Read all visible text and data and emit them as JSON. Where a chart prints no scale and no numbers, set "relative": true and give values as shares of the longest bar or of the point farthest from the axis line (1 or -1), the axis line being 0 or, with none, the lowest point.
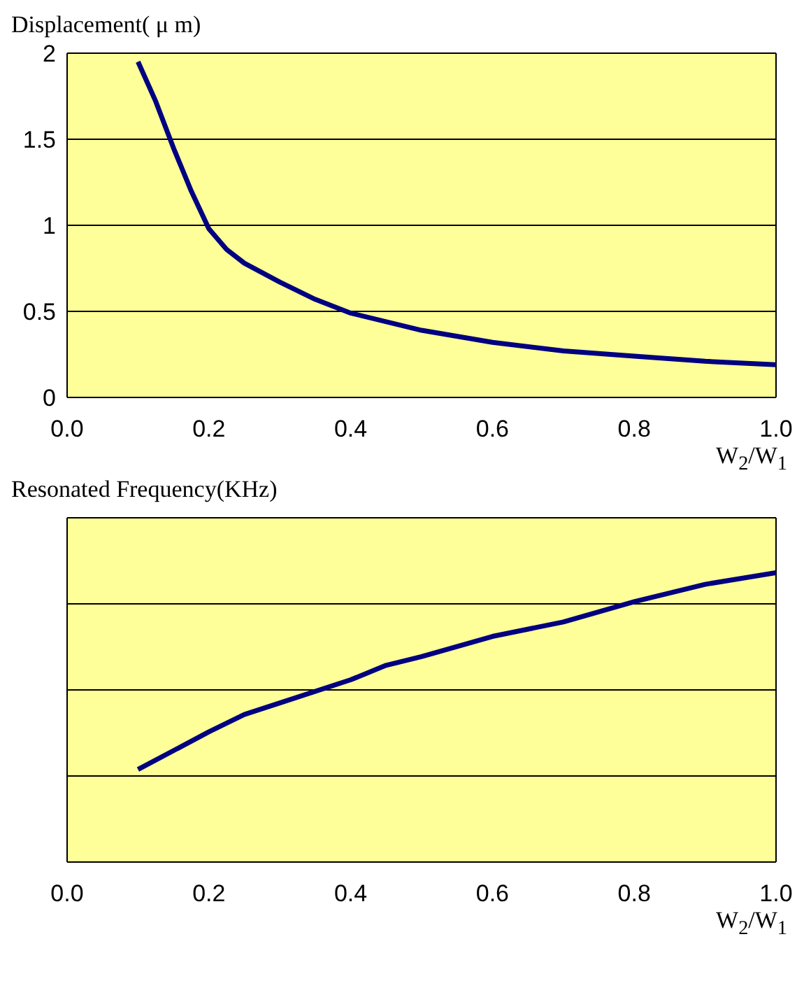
{
  "chart_data": [
    {
      "type": "line",
      "ylabel": "Displacement( μ m)",
      "xlabel": "W$_{2}$/W$_{1}$",
      "x": [
        0.1,
        0.125,
        0.15,
        0.175,
        0.2,
        0.225,
        0.25,
        0.3,
        0.35,
        0.4,
        0.5,
        0.6,
        0.7,
        0.8,
        0.9,
        1.0
      ],
      "series": [
        {
          "color": "#000080",
          "values": [
            1.95,
            1.72,
            1.45,
            1.2,
            0.98,
            0.86,
            0.78,
            0.67,
            0.57,
            0.49,
            0.39,
            0.32,
            0.27,
            0.24,
            0.21,
            0.19
          ]
        }
      ],
      "xlim": [
        0,
        1
      ],
      "xticks": [
        {
          "value": 0,
          "label": "0.0"
        },
        {
          "value": 0.2,
          "label": "0.2"
        },
        {
          "value": 0.4,
          "label": "0.4"
        },
        {
          "value": 0.6,
          "label": "0.6"
        },
        {
          "value": 0.8,
          "label": "0.8"
        },
        {
          "value": 1,
          "label": "1.0"
        }
      ],
      "ylim": [
        0,
        2
      ],
      "yticks": [
        0,
        0.5,
        1,
        1.5,
        2
      ],
      "grid": "y",
      "legend": false,
      "marker": "none",
      "line_style": "solid"
    },
    {
      "type": "line",
      "ylabel": "Resonated Frequency(KHz)",
      "xlabel": "W$_{2}$/W$_{1}$",
      "x": [
        0.1,
        0.2,
        0.25,
        0.3,
        0.4,
        0.45,
        0.5,
        0.6,
        0.7,
        0.8,
        0.9,
        1.0
      ],
      "series": [
        {
          "color": "#000080",
          "values": [
            0.32,
            0.45,
            0.51,
            0.55,
            0.63,
            0.68,
            0.71,
            0.78,
            0.83,
            0.9,
            0.96,
            1
          ]
        }
      ],
      "relative": true,
      "xlim": [
        0,
        1
      ],
      "xticks": [
        {
          "value": 0,
          "label": "0.0"
        },
        {
          "value": 0.2,
          "label": "0.2"
        },
        {
          "value": 0.4,
          "label": "0.4"
        },
        {
          "value": 0.6,
          "label": "0.6"
        },
        {
          "value": 0.8,
          "label": "0.8"
        },
        {
          "value": 1,
          "label": "1.0"
        }
      ],
      "grid": "y",
      "legend": false,
      "marker": "none",
      "line_style": "solid"
    }
  ]
}
